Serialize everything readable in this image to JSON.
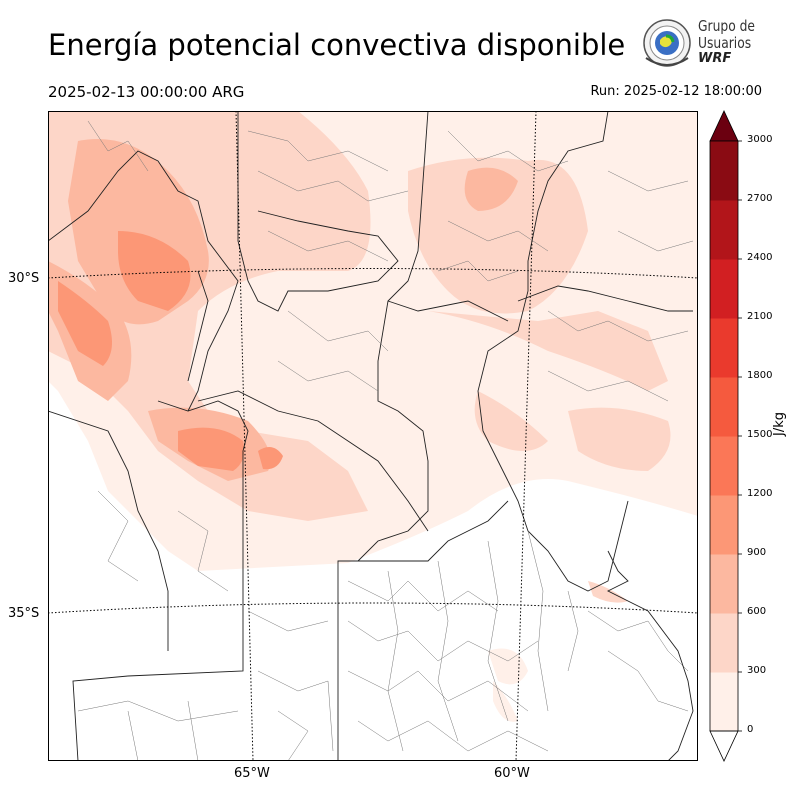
{
  "header": {
    "title": "Energía potencial convectiva disponible",
    "valid_time": "2025-02-13 00:00:00 ARG",
    "run_time": "Run: 2025-02-12 18:00:00"
  },
  "logo": {
    "line1": "Grupo de",
    "line2": "Usuarios",
    "line3": "WRF"
  },
  "map": {
    "latitude_labels": [
      "30°S",
      "35°S"
    ],
    "longitude_labels": [
      "65°W",
      "60°W"
    ]
  },
  "colorbar": {
    "unit": "J/kg",
    "levels": [
      "0",
      "300",
      "600",
      "900",
      "1200",
      "1500",
      "1800",
      "2100",
      "2400",
      "2700",
      "3000"
    ],
    "colors": [
      "#fff0e9",
      "#fdd6c8",
      "#fcb8a0",
      "#fc9776",
      "#fb7757",
      "#f55a3e",
      "#ea3a2d",
      "#d21f22",
      "#b2151a",
      "#8a0b13",
      "#6b0010"
    ]
  }
}
